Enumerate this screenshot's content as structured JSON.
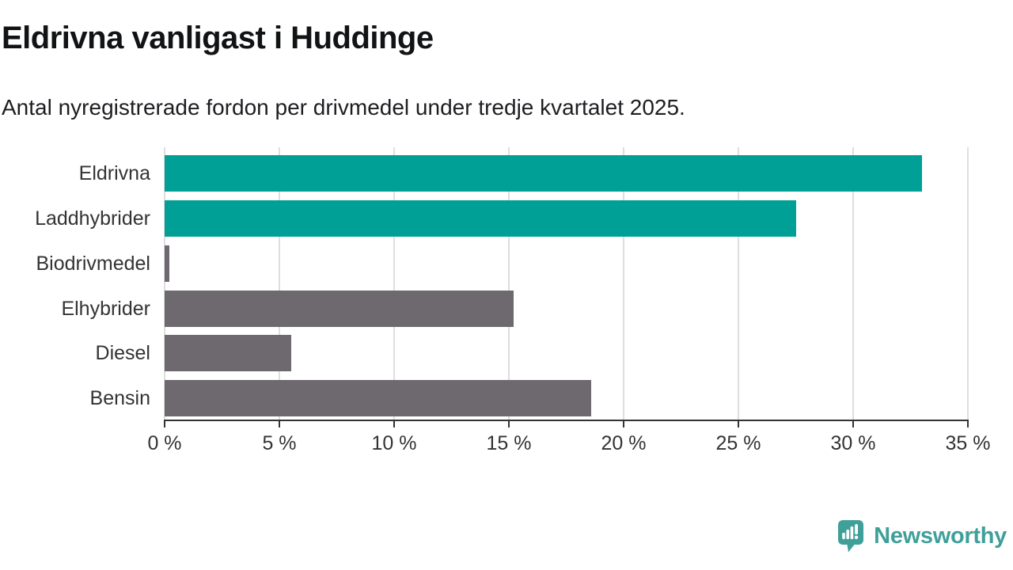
{
  "header": {
    "title": "Eldrivna vanligast i Huddinge",
    "subtitle": "Antal nyregistrerade fordon per drivmedel under tredje kvartalet 2025."
  },
  "chart_data": {
    "type": "bar",
    "orientation": "horizontal",
    "title": "Eldrivna vanligast i Huddinge",
    "subtitle": "Antal nyregistrerade fordon per drivmedel under tredje kvartalet 2025.",
    "categories": [
      "Eldrivna",
      "Laddhybrider",
      "Biodrivmedel",
      "Elhybrider",
      "Diesel",
      "Bensin"
    ],
    "values": [
      33.0,
      27.5,
      0.2,
      15.2,
      5.5,
      18.6
    ],
    "unit": "%",
    "bar_colors": [
      "#00A096",
      "#00A096",
      "#6D696E",
      "#6D696E",
      "#6D696E",
      "#6D696E"
    ],
    "xlim": [
      0,
      35
    ],
    "tick_values": [
      0,
      5,
      10,
      15,
      20,
      25,
      30,
      35
    ],
    "x_tick_labels": [
      "0 %",
      "5 %",
      "10 %",
      "15 %",
      "20 %",
      "25 %",
      "30 %",
      "35 %"
    ],
    "grid": true,
    "gridline_color": "#dedede",
    "axis_color": "#333333",
    "label_color": "#333333",
    "legend": "none"
  },
  "footer": {
    "brand": "Newsworthy",
    "logo_icon": "speech-bubble-with-bar-chart-and-exclamation",
    "logo_color": "#3FA099"
  },
  "colors": {
    "accent_teal": "#00A096",
    "neutral_gray": "#6D696E",
    "title_text": "#111315",
    "axis_text": "#333333",
    "brand_teal": "#3FA099",
    "background": "#FFFFFF"
  }
}
